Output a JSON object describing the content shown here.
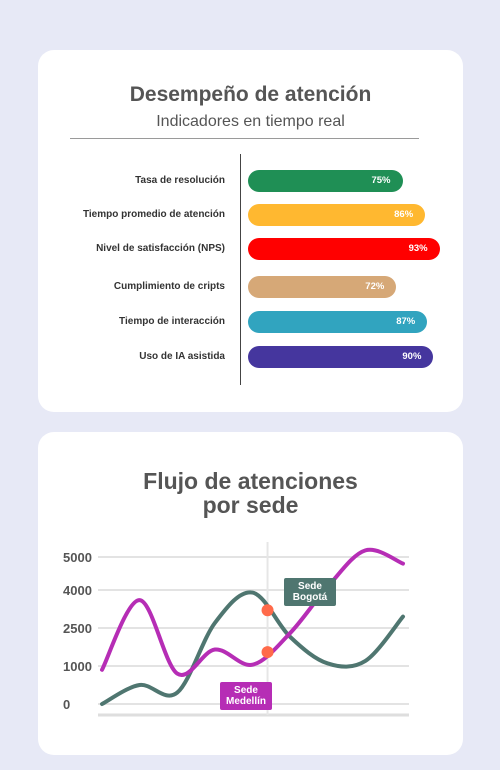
{
  "card1": {
    "title": "Desempeño de atención",
    "subtitle": "Indicadores en tiempo real"
  },
  "card2": {
    "title_line1": "Flujo de atenciones",
    "title_line2": "por sede"
  },
  "chart_data": [
    {
      "type": "bar",
      "orientation": "horizontal",
      "title": "Desempeño de atención",
      "subtitle": "Indicadores en tiempo real",
      "categories": [
        "Tasa de resolución",
        "Tiempo promedio de atención",
        "Nivel de satisfacción (NPS)",
        "Cumplimiento de cripts",
        "Tiempo de interacción",
        "Uso de IA asistida"
      ],
      "values": [
        75,
        86,
        93,
        72,
        87,
        90
      ],
      "value_labels": [
        "75%",
        "86%",
        "93%",
        "72%",
        "87%",
        "90%"
      ],
      "colors": [
        "#1f8f55",
        "#ffb830",
        "#ff0000",
        "#d6a877",
        "#31a4bf",
        "#45369e"
      ],
      "xlim": [
        0,
        100
      ],
      "grid": false
    },
    {
      "type": "line",
      "title": "Flujo de atenciones por sede",
      "x": [
        0,
        1,
        2,
        3,
        4,
        5,
        6,
        7,
        8
      ],
      "yticks": [
        "0",
        "1000",
        "2500",
        "4000",
        "5000"
      ],
      "ylim": [
        0,
        5500
      ],
      "grid": true,
      "series": [
        {
          "name": "Sede Bogotá",
          "color": "#4f7670",
          "values": [
            0,
            500,
            300,
            2700,
            3900,
            2150,
            1100,
            1200,
            2950
          ],
          "marker_index": 4.4,
          "label": "Sede\nBogotá"
        },
        {
          "name": "Sede Medellín",
          "color": "#b62db5",
          "values": [
            900,
            3600,
            800,
            1650,
            1050,
            2300,
            4100,
            5200,
            4800
          ],
          "marker_index": 4.4,
          "label": "Sede\nMedellín"
        }
      ],
      "marker_color": "#ff6a4a",
      "labels": {
        "bogota_l1": "Sede",
        "bogota_l2": "Bogotá",
        "medellin_l1": "Sede",
        "medellin_l2": "Medellín"
      }
    }
  ]
}
